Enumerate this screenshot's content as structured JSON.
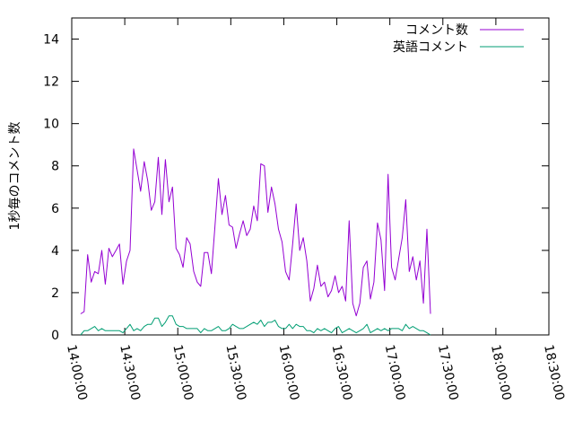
{
  "chart_data": {
    "type": "line",
    "title": "",
    "xlabel": "",
    "ylabel": "1秒毎のコメント数",
    "ylim": [
      0,
      15
    ],
    "yticks": [
      0,
      2,
      4,
      6,
      8,
      10,
      12,
      14
    ],
    "xlim": [
      "14:00:00",
      "18:30:00"
    ],
    "xticks": [
      "14:00:00",
      "14:30:00",
      "15:00:00",
      "15:30:00",
      "16:00:00",
      "16:30:00",
      "17:00:00",
      "17:30:00",
      "18:00:00",
      "18:30:00"
    ],
    "grid": false,
    "legend_position": "top-right",
    "series": [
      {
        "name": "コメント数",
        "color": "#9400d3",
        "points": [
          [
            "14:05:00",
            1.0
          ],
          [
            "14:07:00",
            1.1
          ],
          [
            "14:09:00",
            3.8
          ],
          [
            "14:11:00",
            2.5
          ],
          [
            "14:13:00",
            3.0
          ],
          [
            "14:15:00",
            2.9
          ],
          [
            "14:17:00",
            4.0
          ],
          [
            "14:19:00",
            2.4
          ],
          [
            "14:21:00",
            4.1
          ],
          [
            "14:23:00",
            3.7
          ],
          [
            "14:25:00",
            4.0
          ],
          [
            "14:27:00",
            4.3
          ],
          [
            "14:29:00",
            2.4
          ],
          [
            "14:31:00",
            3.5
          ],
          [
            "14:33:00",
            4.0
          ],
          [
            "14:35:00",
            8.8
          ],
          [
            "14:37:00",
            7.8
          ],
          [
            "14:39:00",
            6.8
          ],
          [
            "14:41:00",
            8.2
          ],
          [
            "14:43:00",
            7.3
          ],
          [
            "14:45:00",
            5.9
          ],
          [
            "14:47:00",
            6.3
          ],
          [
            "14:49:00",
            8.4
          ],
          [
            "14:51:00",
            5.7
          ],
          [
            "14:53:00",
            8.3
          ],
          [
            "14:55:00",
            6.3
          ],
          [
            "14:57:00",
            7.0
          ],
          [
            "14:59:00",
            4.1
          ],
          [
            "15:01:00",
            3.8
          ],
          [
            "15:03:00",
            3.2
          ],
          [
            "15:05:00",
            4.6
          ],
          [
            "15:07:00",
            4.3
          ],
          [
            "15:09:00",
            3.0
          ],
          [
            "15:11:00",
            2.5
          ],
          [
            "15:13:00",
            2.3
          ],
          [
            "15:15:00",
            3.9
          ],
          [
            "15:17:00",
            3.9
          ],
          [
            "15:19:00",
            2.9
          ],
          [
            "15:21:00",
            5.1
          ],
          [
            "15:23:00",
            7.4
          ],
          [
            "15:25:00",
            5.7
          ],
          [
            "15:27:00",
            6.6
          ],
          [
            "15:29:00",
            5.2
          ],
          [
            "15:31:00",
            5.1
          ],
          [
            "15:33:00",
            4.1
          ],
          [
            "15:35:00",
            4.8
          ],
          [
            "15:37:00",
            5.4
          ],
          [
            "15:39:00",
            4.7
          ],
          [
            "15:41:00",
            5.0
          ],
          [
            "15:43:00",
            6.1
          ],
          [
            "15:45:00",
            5.4
          ],
          [
            "15:47:00",
            8.1
          ],
          [
            "15:49:00",
            8.0
          ],
          [
            "15:51:00",
            5.8
          ],
          [
            "15:53:00",
            7.0
          ],
          [
            "15:55:00",
            6.2
          ],
          [
            "15:57:00",
            5.0
          ],
          [
            "15:59:00",
            4.4
          ],
          [
            "16:01:00",
            3.0
          ],
          [
            "16:03:00",
            2.6
          ],
          [
            "16:05:00",
            4.3
          ],
          [
            "16:07:00",
            6.2
          ],
          [
            "16:09:00",
            4.0
          ],
          [
            "16:11:00",
            4.6
          ],
          [
            "16:13:00",
            3.5
          ],
          [
            "16:15:00",
            1.6
          ],
          [
            "16:17:00",
            2.2
          ],
          [
            "16:19:00",
            3.3
          ],
          [
            "16:21:00",
            2.3
          ],
          [
            "16:23:00",
            2.5
          ],
          [
            "16:25:00",
            1.8
          ],
          [
            "16:27:00",
            2.1
          ],
          [
            "16:29:00",
            2.8
          ],
          [
            "16:31:00",
            2.0
          ],
          [
            "16:33:00",
            2.3
          ],
          [
            "16:35:00",
            1.6
          ],
          [
            "16:37:00",
            5.4
          ],
          [
            "16:39:00",
            1.5
          ],
          [
            "16:41:00",
            0.9
          ],
          [
            "16:43:00",
            1.5
          ],
          [
            "16:45:00",
            3.2
          ],
          [
            "16:47:00",
            3.5
          ],
          [
            "16:49:00",
            1.7
          ],
          [
            "16:51:00",
            2.5
          ],
          [
            "16:53:00",
            5.3
          ],
          [
            "16:55:00",
            4.5
          ],
          [
            "16:57:00",
            2.1
          ],
          [
            "16:59:00",
            7.6
          ],
          [
            "17:01:00",
            3.2
          ],
          [
            "17:03:00",
            2.6
          ],
          [
            "17:05:00",
            3.6
          ],
          [
            "17:07:00",
            4.6
          ],
          [
            "17:09:00",
            6.4
          ],
          [
            "17:11:00",
            3.0
          ],
          [
            "17:13:00",
            3.7
          ],
          [
            "17:15:00",
            2.6
          ],
          [
            "17:17:00",
            3.5
          ],
          [
            "17:19:00",
            1.5
          ],
          [
            "17:21:00",
            5.0
          ],
          [
            "17:23:00",
            1.0
          ]
        ]
      },
      {
        "name": "英語コメント",
        "color": "#009e73",
        "points": [
          [
            "14:05:00",
            0.0
          ],
          [
            "14:07:00",
            0.2
          ],
          [
            "14:09:00",
            0.2
          ],
          [
            "14:11:00",
            0.3
          ],
          [
            "14:13:00",
            0.4
          ],
          [
            "14:15:00",
            0.2
          ],
          [
            "14:17:00",
            0.3
          ],
          [
            "14:19:00",
            0.2
          ],
          [
            "14:21:00",
            0.2
          ],
          [
            "14:23:00",
            0.2
          ],
          [
            "14:25:00",
            0.2
          ],
          [
            "14:27:00",
            0.2
          ],
          [
            "14:29:00",
            0.1
          ],
          [
            "14:31:00",
            0.3
          ],
          [
            "14:33:00",
            0.5
          ],
          [
            "14:35:00",
            0.2
          ],
          [
            "14:37:00",
            0.3
          ],
          [
            "14:39:00",
            0.2
          ],
          [
            "14:41:00",
            0.4
          ],
          [
            "14:43:00",
            0.5
          ],
          [
            "14:45:00",
            0.5
          ],
          [
            "14:47:00",
            0.8
          ],
          [
            "14:49:00",
            0.8
          ],
          [
            "14:51:00",
            0.4
          ],
          [
            "14:53:00",
            0.6
          ],
          [
            "14:55:00",
            0.9
          ],
          [
            "14:57:00",
            0.9
          ],
          [
            "14:59:00",
            0.5
          ],
          [
            "15:01:00",
            0.4
          ],
          [
            "15:03:00",
            0.4
          ],
          [
            "15:05:00",
            0.3
          ],
          [
            "15:07:00",
            0.3
          ],
          [
            "15:09:00",
            0.3
          ],
          [
            "15:11:00",
            0.3
          ],
          [
            "15:13:00",
            0.1
          ],
          [
            "15:15:00",
            0.3
          ],
          [
            "15:17:00",
            0.2
          ],
          [
            "15:19:00",
            0.2
          ],
          [
            "15:21:00",
            0.3
          ],
          [
            "15:23:00",
            0.4
          ],
          [
            "15:25:00",
            0.2
          ],
          [
            "15:27:00",
            0.2
          ],
          [
            "15:29:00",
            0.3
          ],
          [
            "15:31:00",
            0.5
          ],
          [
            "15:33:00",
            0.4
          ],
          [
            "15:35:00",
            0.3
          ],
          [
            "15:37:00",
            0.3
          ],
          [
            "15:39:00",
            0.4
          ],
          [
            "15:41:00",
            0.5
          ],
          [
            "15:43:00",
            0.6
          ],
          [
            "15:45:00",
            0.5
          ],
          [
            "15:47:00",
            0.7
          ],
          [
            "15:49:00",
            0.4
          ],
          [
            "15:51:00",
            0.6
          ],
          [
            "15:53:00",
            0.6
          ],
          [
            "15:55:00",
            0.7
          ],
          [
            "15:57:00",
            0.4
          ],
          [
            "15:59:00",
            0.3
          ],
          [
            "16:01:00",
            0.3
          ],
          [
            "16:03:00",
            0.5
          ],
          [
            "16:05:00",
            0.3
          ],
          [
            "16:07:00",
            0.5
          ],
          [
            "16:09:00",
            0.4
          ],
          [
            "16:11:00",
            0.4
          ],
          [
            "16:13:00",
            0.2
          ],
          [
            "16:15:00",
            0.2
          ],
          [
            "16:17:00",
            0.1
          ],
          [
            "16:19:00",
            0.3
          ],
          [
            "16:21:00",
            0.2
          ],
          [
            "16:23:00",
            0.3
          ],
          [
            "16:25:00",
            0.2
          ],
          [
            "16:27:00",
            0.1
          ],
          [
            "16:29:00",
            0.3
          ],
          [
            "16:31:00",
            0.4
          ],
          [
            "16:33:00",
            0.1
          ],
          [
            "16:35:00",
            0.2
          ],
          [
            "16:37:00",
            0.3
          ],
          [
            "16:39:00",
            0.2
          ],
          [
            "16:41:00",
            0.1
          ],
          [
            "16:43:00",
            0.2
          ],
          [
            "16:45:00",
            0.3
          ],
          [
            "16:47:00",
            0.5
          ],
          [
            "16:49:00",
            0.1
          ],
          [
            "16:51:00",
            0.2
          ],
          [
            "16:53:00",
            0.3
          ],
          [
            "16:55:00",
            0.2
          ],
          [
            "16:57:00",
            0.3
          ],
          [
            "16:59:00",
            0.2
          ],
          [
            "17:01:00",
            0.3
          ],
          [
            "17:03:00",
            0.3
          ],
          [
            "17:05:00",
            0.3
          ],
          [
            "17:07:00",
            0.2
          ],
          [
            "17:09:00",
            0.5
          ],
          [
            "17:11:00",
            0.3
          ],
          [
            "17:13:00",
            0.4
          ],
          [
            "17:15:00",
            0.3
          ],
          [
            "17:17:00",
            0.2
          ],
          [
            "17:19:00",
            0.2
          ],
          [
            "17:21:00",
            0.1
          ],
          [
            "17:23:00",
            0.0
          ]
        ]
      }
    ]
  }
}
